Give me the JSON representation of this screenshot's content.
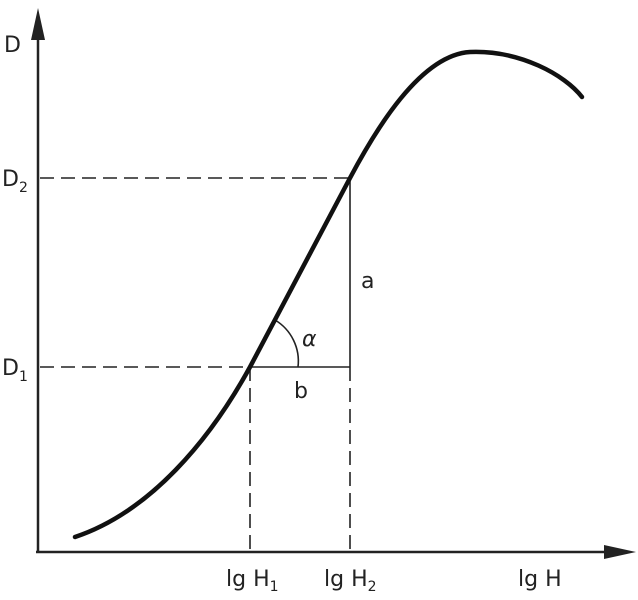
{
  "labels": {
    "y_axis": "D",
    "d2": {
      "main": "D",
      "sub": "2"
    },
    "d1": {
      "main": "D",
      "sub": "1"
    },
    "a": "a",
    "alpha": "α",
    "b": "b",
    "h1": {
      "main": "lg H",
      "sub": "1"
    },
    "h2": {
      "main": "lg H",
      "sub": "2"
    },
    "x_axis": "lg H"
  }
}
